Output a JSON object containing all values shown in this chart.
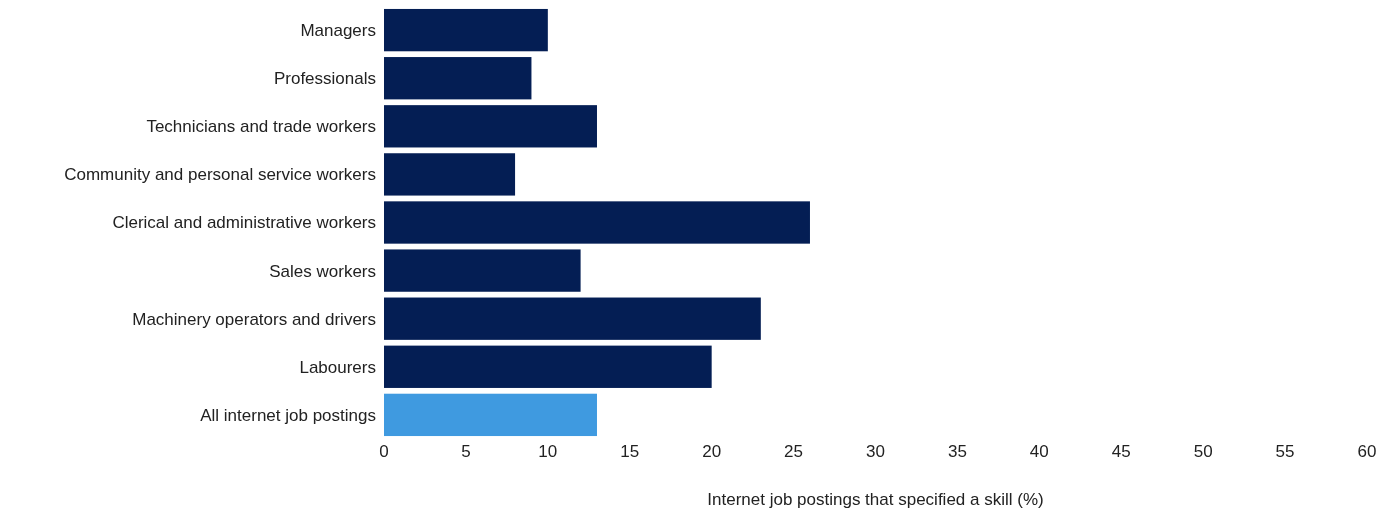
{
  "chart_data": {
    "type": "bar",
    "orientation": "horizontal",
    "xlabel": "Internet job postings that specified a skill (%)",
    "categories": [
      "Managers",
      "Professionals",
      "Technicians and trade workers",
      "Community and personal service workers",
      "Clerical and administrative workers",
      "Sales workers",
      "Machinery operators and drivers",
      "Labourers",
      "All internet job postings"
    ],
    "values": [
      10,
      9,
      13,
      8,
      26,
      12,
      23,
      20,
      13
    ],
    "colors": [
      "#041e54",
      "#041e54",
      "#041e54",
      "#041e54",
      "#041e54",
      "#041e54",
      "#041e54",
      "#041e54",
      "#3f9ae0"
    ],
    "xlim": [
      0,
      60
    ],
    "xticks": [
      0,
      5,
      10,
      15,
      20,
      25,
      30,
      35,
      40,
      45,
      50,
      55,
      60
    ],
    "grid": false
  }
}
